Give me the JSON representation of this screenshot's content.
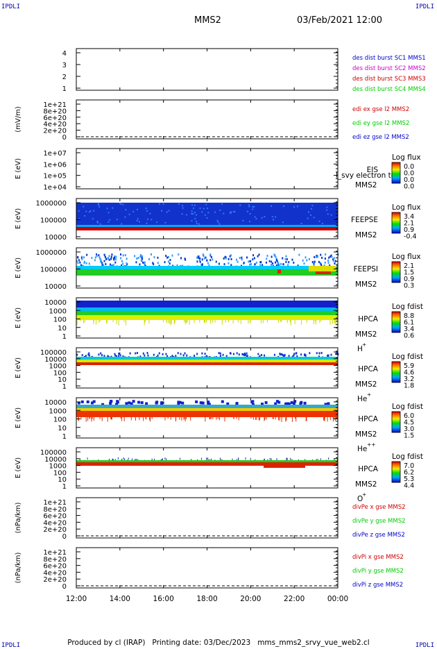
{
  "header": {
    "corner_left_top": "IPDLI",
    "corner_right_top": "IPDLI",
    "corner_left_bottom": "IPDLI",
    "corner_right_bottom": "IPDLI",
    "spacecraft": "MMS2",
    "datetime": "03/Feb/2021 12:00"
  },
  "footer": {
    "text": "Produced by cl (IRAP)   Printing date: 03/Dec/2023   mms_mms2_srvy_vue_web2.cl"
  },
  "chart_data": [
    {
      "id": "burst",
      "type": "line",
      "yticks": [
        "4",
        "3",
        "2",
        "1"
      ],
      "ylim": [
        0.5,
        4.5
      ],
      "ylabel": "",
      "legend": [
        {
          "text": "des dist burst SC1 MMS1",
          "color": "#0000cc"
        },
        {
          "text": "des dist burst SC2 MMS2",
          "color": "#cc00cc"
        },
        {
          "text": "des dist burst SC3 MMS3",
          "color": "#cc0000"
        },
        {
          "text": "des dist burst SC4 MMS4",
          "color": "#00cc00"
        }
      ]
    },
    {
      "id": "edi",
      "type": "line",
      "yticks": [
        "1e+21",
        "8e+20",
        "6e+20",
        "4e+20",
        "2e+20",
        "0"
      ],
      "ylabel": "(mV/m)",
      "legend": [
        {
          "text": "edi ex gse l2 MMS2",
          "color": "#cc0000"
        },
        {
          "text": "edi ey gse l2 MMS2",
          "color": "#00cc00"
        },
        {
          "text": "edi ez gse l2 MMS2",
          "color": "#0000cc"
        }
      ]
    },
    {
      "id": "eis",
      "type": "heatmap",
      "yticks": [
        "1e+07",
        "1e+06",
        "1e+05",
        "1e+04"
      ],
      "ylabel": "E (eV)",
      "instrument": "EIS",
      "overlay": "l_svy electron to",
      "sc": "MMS2",
      "species": "",
      "cbar_title": "Log flux",
      "cbar_ticks": [
        "0.0",
        "0.0",
        "0.0",
        "0.0"
      ]
    },
    {
      "id": "feepse",
      "type": "heatmap",
      "yticks": [
        "1000000",
        "100000",
        "10000"
      ],
      "ylabel": "E (eV)",
      "instrument": "FEEPSE",
      "sc": "MMS2",
      "species": "",
      "cbar_title": "Log flux",
      "cbar_ticks": [
        "3.4",
        "2.1",
        "0.9",
        "-0.4"
      ]
    },
    {
      "id": "feepsi",
      "type": "heatmap",
      "yticks": [
        "1000000",
        "100000",
        "10000"
      ],
      "ylabel": "E (eV)",
      "instrument": "FEEPSI",
      "sc": "MMS2",
      "species": "",
      "cbar_title": "Log flux",
      "cbar_ticks": [
        "2.1",
        "1.5",
        "0.9",
        "0.3"
      ]
    },
    {
      "id": "hpca_h",
      "type": "heatmap",
      "yticks": [
        "10000",
        "1000",
        "100",
        "10",
        "1"
      ],
      "ylabel": "E (eV)",
      "instrument": "HPCA",
      "sc": "MMS2",
      "species": "H",
      "species_sup": "+",
      "cbar_title": "Log fdist",
      "cbar_ticks": [
        "8.8",
        "6.1",
        "3.4",
        "0.6"
      ]
    },
    {
      "id": "hpca_he",
      "type": "heatmap",
      "yticks": [
        "100000",
        "10000",
        "1000",
        "100",
        "10",
        "1"
      ],
      "ylabel": "E (eV)",
      "instrument": "HPCA",
      "sc": "MMS2",
      "species": "He",
      "species_sup": "+",
      "cbar_title": "Log fdist",
      "cbar_ticks": [
        "5.9",
        "4.6",
        "3.2",
        "1.8"
      ]
    },
    {
      "id": "hpca_hepp",
      "type": "heatmap",
      "yticks": [
        "10000",
        "1000",
        "100",
        "10",
        "1"
      ],
      "ylabel": "E (eV)",
      "instrument": "HPCA",
      "sc": "MMS2",
      "species": "He",
      "species_sup": "++",
      "cbar_title": "Log fdist",
      "cbar_ticks": [
        "6.0",
        "4.5",
        "3.0",
        "1.5"
      ]
    },
    {
      "id": "hpca_o",
      "type": "heatmap",
      "yticks": [
        "100000",
        "10000",
        "1000",
        "100",
        "10",
        "1"
      ],
      "ylabel": "E (eV)",
      "instrument": "HPCA",
      "sc": "MMS2",
      "species": "O",
      "species_sup": "+",
      "cbar_title": "Log fdist",
      "cbar_ticks": [
        "7.0",
        "6.2",
        "5.3",
        "4.4"
      ]
    },
    {
      "id": "divpe",
      "type": "line",
      "yticks": [
        "1e+21",
        "8e+20",
        "6e+20",
        "4e+20",
        "2e+20",
        "0"
      ],
      "ylabel": "(nPa/km)",
      "legend": [
        {
          "text": "divPe x gse MMS2",
          "color": "#cc0000"
        },
        {
          "text": "divPe y gse MMS2",
          "color": "#00cc00"
        },
        {
          "text": "divPe z gse MMS2",
          "color": "#0000cc"
        }
      ]
    },
    {
      "id": "divpi",
      "type": "line",
      "yticks": [
        "1e+21",
        "8e+20",
        "6e+20",
        "4e+20",
        "2e+20",
        "0"
      ],
      "ylabel": "(nPa/km)",
      "legend": [
        {
          "text": "divPi x gse MMS2",
          "color": "#cc0000"
        },
        {
          "text": "divPi y gse MMS2",
          "color": "#00cc00"
        },
        {
          "text": "divPi z gse MMS2",
          "color": "#0000cc"
        }
      ]
    }
  ],
  "time_axis": {
    "ticks": [
      "12:00",
      "14:00",
      "16:00",
      "18:00",
      "20:00",
      "22:00",
      "00:00"
    ]
  }
}
